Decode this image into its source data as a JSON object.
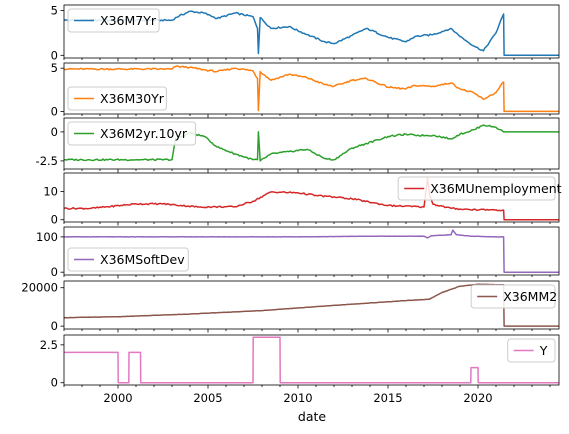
{
  "chart_data": {
    "type": "line",
    "xlabel": "date",
    "xlim": [
      1997.0,
      2024.5
    ],
    "xticks": [
      2000,
      2005,
      2010,
      2015,
      2020
    ],
    "panels": [
      {
        "name": "X36M7Yr",
        "color": "#1f77b4",
        "ylim": [
          -0.3,
          5.6
        ],
        "yticks": [
          0,
          5
        ],
        "legend_loc": "upper-left",
        "x": [
          1997.0,
          2003.0,
          2003.2,
          2004.0,
          2004.8,
          2005.5,
          2006.5,
          2007.5,
          2007.75,
          2007.8,
          2007.9,
          2008.5,
          2009.5,
          2010.5,
          2011.5,
          2012.0,
          2013.0,
          2013.8,
          2015.0,
          2016.0,
          2016.5,
          2017.5,
          2018.5,
          2019.0,
          2019.8,
          2020.3,
          2021.0,
          2021.42,
          2021.45,
          2024.5
        ],
        "y": [
          3.9,
          3.9,
          4.2,
          4.9,
          4.7,
          4.1,
          4.7,
          4.3,
          3.0,
          0.2,
          4.2,
          3.0,
          3.2,
          2.3,
          1.5,
          1.3,
          2.2,
          3.0,
          2.0,
          1.5,
          2.1,
          2.3,
          3.0,
          2.1,
          1.0,
          0.5,
          2.5,
          4.6,
          0.0,
          0.0
        ]
      },
      {
        "name": "X36M30Yr",
        "color": "#ff7f0e",
        "ylim": [
          -0.3,
          5.6
        ],
        "yticks": [
          0,
          5
        ],
        "legend_loc": "lower-left",
        "x": [
          1997.0,
          2003.0,
          2003.2,
          2004.0,
          2004.8,
          2005.5,
          2006.5,
          2007.5,
          2007.75,
          2007.8,
          2007.9,
          2008.5,
          2009.5,
          2010.5,
          2011.5,
          2012.0,
          2013.0,
          2013.8,
          2015.0,
          2016.0,
          2016.5,
          2017.5,
          2018.5,
          2019.0,
          2019.8,
          2020.3,
          2021.0,
          2021.42,
          2021.45,
          2024.5
        ],
        "y": [
          4.9,
          4.9,
          5.2,
          5.1,
          4.8,
          4.6,
          5.0,
          4.7,
          3.8,
          0.1,
          4.6,
          3.6,
          4.3,
          3.9,
          3.1,
          2.9,
          3.6,
          3.8,
          2.8,
          2.6,
          3.0,
          2.9,
          3.3,
          2.6,
          2.1,
          1.4,
          2.2,
          3.4,
          0.0,
          0.0
        ]
      },
      {
        "name": "X36M2yr.10yr",
        "color": "#2ca02c",
        "ylim": [
          -3.2,
          1.2
        ],
        "yticks": [
          -2.5,
          0.0
        ],
        "legend_loc": "upper-left",
        "x": [
          1997.0,
          2003.0,
          2003.2,
          2004.0,
          2004.8,
          2005.5,
          2006.5,
          2007.5,
          2007.75,
          2007.8,
          2007.9,
          2008.5,
          2009.5,
          2010.5,
          2011.5,
          2012.0,
          2013.0,
          2013.8,
          2015.0,
          2016.0,
          2016.5,
          2017.5,
          2018.5,
          2019.0,
          2019.8,
          2020.3,
          2021.0,
          2021.42,
          2021.45,
          2024.5
        ],
        "y": [
          -2.4,
          -2.4,
          -0.6,
          -0.1,
          -0.4,
          -1.3,
          -1.9,
          -2.4,
          -2.4,
          0.0,
          -2.5,
          -1.9,
          -1.7,
          -1.5,
          -2.3,
          -2.4,
          -1.4,
          -1.0,
          -0.4,
          -0.2,
          -0.3,
          -0.3,
          -0.6,
          -0.2,
          0.2,
          0.6,
          0.4,
          0.0,
          0.0,
          0.0
        ]
      },
      {
        "name": "X36MUnemployment",
        "color": "#d62728",
        "ylim": [
          -0.8,
          16.5
        ],
        "yticks": [
          0,
          10
        ],
        "legend_loc": "upper-right",
        "x": [
          1997.0,
          1998.5,
          2001.0,
          2002.5,
          2004.5,
          2006.5,
          2007.5,
          2008.5,
          2010.0,
          2011.0,
          2013.0,
          2015.0,
          2017.0,
          2017.2,
          2017.3,
          2017.5,
          2018.5,
          2019.5,
          2021.0,
          2021.42,
          2021.45,
          2024.5
        ],
        "y": [
          4.0,
          4.0,
          5.6,
          5.6,
          4.5,
          4.6,
          6.5,
          9.8,
          9.5,
          8.6,
          7.4,
          5.0,
          4.5,
          14.8,
          9.0,
          5.5,
          4.0,
          3.6,
          3.5,
          3.4,
          0.0,
          0.0
        ]
      },
      {
        "name": "X36MSoftDev",
        "color": "#9467bd",
        "ylim": [
          -8,
          128
        ],
        "yticks": [
          0,
          100
        ],
        "legend_loc": "lower-left",
        "x": [
          1997.0,
          2010.0,
          2014.0,
          2017.0,
          2017.2,
          2017.4,
          2018.5,
          2018.6,
          2018.8,
          2019.6,
          2021.0,
          2021.42,
          2021.45,
          2024.5
        ],
        "y": [
          100,
          100,
          102,
          102,
          97,
          103,
          106,
          119,
          106,
          102,
          100,
          100,
          0,
          0
        ],
        "y_note": ""
      },
      {
        "name": "X36MM2",
        "color": "#8c564b",
        "ylim": [
          -1500,
          23500
        ],
        "yticks": [
          0,
          20000
        ],
        "legend_loc": "upper-right",
        "x": [
          1997.0,
          2000.0,
          2004.0,
          2008.0,
          2012.0,
          2016.0,
          2017.3,
          2018.0,
          2019.0,
          2020.0,
          2021.42,
          2021.45,
          2024.5
        ],
        "y": [
          4400,
          4900,
          6300,
          8100,
          10800,
          13300,
          14000,
          17500,
          20800,
          21800,
          21500,
          0,
          0
        ]
      },
      {
        "name": "Y",
        "color": "#e377c2",
        "ylim": [
          -0.15,
          3.15
        ],
        "yticks": [
          0.0,
          2.5
        ],
        "legend_loc": "upper-right",
        "x": [
          1997.0,
          2000.0,
          2000.01,
          2000.6,
          2000.61,
          2001.25,
          2001.26,
          2007.5,
          2007.51,
          2009.0,
          2009.01,
          2019.6,
          2019.61,
          2020.0,
          2020.01,
          2024.5
        ],
        "y": [
          2.0,
          2.0,
          0.0,
          0.0,
          2.0,
          2.0,
          0.0,
          0.0,
          3.0,
          3.0,
          0.0,
          0.0,
          1.0,
          1.0,
          0.0,
          0.0
        ]
      }
    ]
  }
}
